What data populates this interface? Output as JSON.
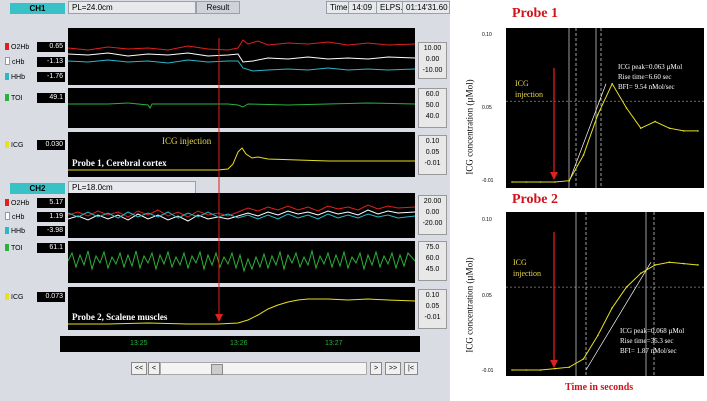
{
  "monitor": {
    "ch1": {
      "title": "CH1",
      "pl": "PL=24.0cm",
      "result_label": "Result",
      "time_label": "Time",
      "time_value": "14:09",
      "elps_label": "ELPS.",
      "elps_value": "01:14'31.60",
      "signals": [
        {
          "name": "O2Hb",
          "value": "0.65",
          "color": "#e0201c"
        },
        {
          "name": "cHb",
          "value": "-1.13",
          "color": "#ffffff"
        },
        {
          "name": "HHb",
          "value": "-1.76",
          "color": "#2ab7c8"
        },
        {
          "name": "TOI",
          "value": "49.1",
          "color": "#29b23a"
        },
        {
          "name": "ICG",
          "value": "0.030",
          "color": "#e8e020"
        }
      ],
      "scale_hb": [
        "10.00",
        "0.00",
        "-10.00"
      ],
      "scale_toi": [
        "60.0",
        "50.0",
        "40.0"
      ],
      "scale_icg": [
        "0.10",
        "0.05",
        "-0.01"
      ],
      "injection_text": "ICG injection",
      "probe_text": "Probe 1, Cerebral cortex"
    },
    "ch2": {
      "title": "CH2",
      "pl": "PL=18.0cm",
      "signals": [
        {
          "name": "O2Hb",
          "value": "5.17",
          "color": "#e0201c"
        },
        {
          "name": "cHb",
          "value": "1.19",
          "color": "#ffffff"
        },
        {
          "name": "HHb",
          "value": "-3.98",
          "color": "#2ab7c8"
        },
        {
          "name": "TOI",
          "value": "61.1",
          "color": "#29b23a"
        },
        {
          "name": "ICG",
          "value": "0.073",
          "color": "#e8e020"
        }
      ],
      "scale_hb": [
        "20.00",
        "0.00",
        "-20.00"
      ],
      "scale_toi": [
        "75.0",
        "60.0",
        "45.0"
      ],
      "scale_icg": [
        "0.10",
        "0.05",
        "-0.01"
      ],
      "probe_text": "Probe 2, Scalene muscles"
    },
    "time_ticks": [
      "13:25",
      "13:26",
      "13:27"
    ],
    "nav": [
      "<<",
      "<",
      ">",
      ">>",
      "|<"
    ]
  },
  "chart_data": [
    {
      "type": "line",
      "title": "Probe 1",
      "ylabel": "ICG concentration (µMol)",
      "yticks": [
        "0.10",
        "0.05",
        "-0.01"
      ],
      "ylim": [
        -0.01,
        0.1
      ],
      "annotation": [
        "ICG peak=0.063 µMol",
        "Rise time=6.60 sec",
        "BFI= 9.54 nMol/sec"
      ],
      "injection_label": [
        "ICG",
        "injection"
      ],
      "series": [
        {
          "values": [
            -0.01,
            -0.01,
            -0.01,
            -0.01,
            -0.009,
            0.01,
            0.04,
            0.063,
            0.045,
            0.03,
            0.035,
            0.03,
            0.028,
            0.028
          ]
        }
      ]
    },
    {
      "type": "line",
      "title": "Probe 2",
      "ylabel": "ICG concentration (µMol)",
      "xlabel": "Time in seconds",
      "yticks": [
        "0.10",
        "0.05",
        "-0.01"
      ],
      "ylim": [
        -0.01,
        0.1
      ],
      "annotation": [
        "ICG peak=0.068 µMol",
        "Rise time=36.3 sec",
        "BFI= 1.87 nMol/sec"
      ],
      "injection_label": [
        "ICG",
        "injection"
      ],
      "series": [
        {
          "values": [
            -0.01,
            -0.01,
            -0.01,
            -0.009,
            -0.008,
            -0.002,
            0.015,
            0.035,
            0.05,
            0.06,
            0.066,
            0.068,
            0.067,
            0.066
          ]
        }
      ]
    }
  ]
}
